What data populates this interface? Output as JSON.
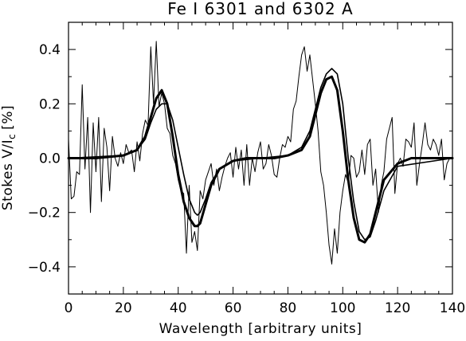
{
  "chart_data": {
    "type": "line",
    "title": "Fe I 6301 and 6302 A",
    "xlabel": "Wavelength [arbitrary units]",
    "ylabel": "Stokes V/I",
    "ylabel_subscript": "c",
    "ylabel_unit": "[%]",
    "xlim": [
      0,
      140
    ],
    "ylim": [
      -0.5,
      0.5
    ],
    "x_ticks": [
      0,
      20,
      40,
      60,
      80,
      100,
      120,
      140
    ],
    "x_tick_labels": [
      "0",
      "20",
      "40",
      "60",
      "80",
      "100",
      "120",
      "140"
    ],
    "y_ticks": [
      -0.4,
      -0.2,
      0.0,
      0.2,
      0.4
    ],
    "y_tick_labels": [
      "−0.4",
      "−0.2",
      "0.0",
      "0.2",
      "0.4"
    ],
    "grid": false,
    "legend": "none",
    "series": [
      {
        "style": "thin-noisy",
        "x": [
          0,
          1,
          2,
          3,
          4,
          5,
          6,
          7,
          8,
          9,
          10,
          11,
          12,
          13,
          14,
          15,
          16,
          17,
          18,
          19,
          20,
          21,
          22,
          23,
          24,
          25,
          26,
          27,
          28,
          29,
          30,
          31,
          32,
          33,
          34,
          35,
          36,
          37,
          38,
          39,
          40,
          41,
          42,
          43,
          44,
          45,
          46,
          47,
          48,
          49,
          50,
          51,
          52,
          53,
          54,
          55,
          56,
          57,
          58,
          59,
          60,
          61,
          62,
          63,
          64,
          65,
          66,
          67,
          68,
          69,
          70,
          71,
          72,
          73,
          74,
          75,
          76,
          77,
          78,
          79,
          80,
          81,
          82,
          83,
          84,
          85,
          86,
          87,
          88,
          89,
          90,
          91,
          92,
          93,
          94,
          95,
          96,
          97,
          98,
          99,
          100,
          101,
          102,
          103,
          104,
          105,
          106,
          107,
          108,
          109,
          110,
          111,
          112,
          113,
          114,
          115,
          116,
          117,
          118,
          119,
          120,
          121,
          122,
          123,
          124,
          125,
          126,
          127,
          128,
          129,
          130,
          131,
          132,
          133,
          134,
          135,
          136,
          137,
          138,
          139,
          140
        ],
        "y": [
          0.07,
          -0.15,
          -0.14,
          -0.05,
          -0.06,
          0.27,
          -0.04,
          0.15,
          -0.2,
          0.13,
          -0.05,
          0.15,
          -0.16,
          0.11,
          0.04,
          -0.12,
          0.08,
          0.0,
          -0.03,
          0.02,
          -0.02,
          0.05,
          0.02,
          0.03,
          -0.05,
          0.06,
          -0.01,
          0.09,
          0.14,
          0.12,
          0.41,
          0.2,
          0.43,
          0.19,
          0.24,
          0.2,
          0.11,
          0.09,
          0.01,
          -0.02,
          -0.08,
          -0.12,
          -0.13,
          -0.35,
          -0.1,
          -0.31,
          -0.27,
          -0.34,
          -0.12,
          -0.15,
          -0.08,
          -0.05,
          -0.02,
          -0.1,
          -0.04,
          -0.12,
          -0.07,
          -0.03,
          0.0,
          0.02,
          -0.07,
          0.04,
          -0.04,
          0.03,
          -0.1,
          0.05,
          -0.1,
          0.0,
          -0.05,
          0.02,
          0.06,
          -0.04,
          -0.02,
          0.05,
          0.01,
          -0.06,
          -0.07,
          0.0,
          0.05,
          0.04,
          0.08,
          0.06,
          0.18,
          0.21,
          0.3,
          0.38,
          0.41,
          0.32,
          0.38,
          0.29,
          0.2,
          0.1,
          -0.05,
          -0.1,
          -0.2,
          -0.32,
          -0.39,
          -0.26,
          -0.35,
          -0.2,
          -0.12,
          -0.06,
          -0.09,
          0.01,
          0.0,
          -0.07,
          -0.05,
          0.03,
          -0.06,
          0.05,
          0.07,
          -0.1,
          -0.04,
          -0.2,
          -0.1,
          -0.05,
          0.07,
          0.11,
          0.15,
          -0.13,
          -0.02,
          0.0,
          -0.03,
          0.07,
          0.06,
          0.04,
          0.13,
          -0.1,
          -0.02,
          0.05,
          0.13,
          0.05,
          0.03,
          0.07,
          0.05,
          0.01,
          0.07,
          -0.08,
          -0.02,
          0.0,
          0.0
        ],
        "line_width": 1
      },
      {
        "style": "thick-fit",
        "x": [
          0,
          10,
          20,
          25,
          28,
          30,
          32,
          34,
          36,
          38,
          40,
          42,
          44,
          46,
          47,
          48,
          50,
          52,
          55,
          60,
          65,
          70,
          75,
          80,
          85,
          88,
          90,
          92,
          94,
          96,
          98,
          100,
          102,
          104,
          106,
          108,
          110,
          112,
          115,
          120,
          125,
          130,
          135,
          140
        ],
        "y": [
          0.0,
          0.0,
          0.01,
          0.03,
          0.08,
          0.15,
          0.22,
          0.25,
          0.2,
          0.08,
          -0.06,
          -0.16,
          -0.22,
          -0.25,
          -0.25,
          -0.24,
          -0.17,
          -0.1,
          -0.04,
          -0.01,
          0.0,
          0.0,
          0.0,
          0.01,
          0.03,
          0.08,
          0.16,
          0.24,
          0.29,
          0.3,
          0.25,
          0.1,
          -0.08,
          -0.22,
          -0.3,
          -0.31,
          -0.28,
          -0.2,
          -0.08,
          -0.02,
          0.0,
          0.0,
          0.0,
          0.0
        ],
        "line_width": 3
      },
      {
        "style": "medium-fit",
        "x": [
          0,
          20,
          25,
          28,
          30,
          32,
          34,
          36,
          38,
          40,
          42,
          44,
          46,
          47,
          48,
          50,
          52,
          55,
          60,
          70,
          80,
          85,
          88,
          90,
          92,
          94,
          96,
          98,
          100,
          102,
          104,
          106,
          108,
          110,
          112,
          115,
          120,
          140
        ],
        "y": [
          0.0,
          0.01,
          0.03,
          0.07,
          0.13,
          0.18,
          0.2,
          0.2,
          0.14,
          0.04,
          -0.06,
          -0.15,
          -0.2,
          -0.21,
          -0.2,
          -0.15,
          -0.09,
          -0.04,
          -0.01,
          0.0,
          0.01,
          0.04,
          0.1,
          0.18,
          0.26,
          0.31,
          0.33,
          0.31,
          0.2,
          0.0,
          -0.16,
          -0.27,
          -0.3,
          -0.29,
          -0.23,
          -0.12,
          -0.03,
          0.0
        ],
        "line_width": 1.6
      }
    ]
  }
}
